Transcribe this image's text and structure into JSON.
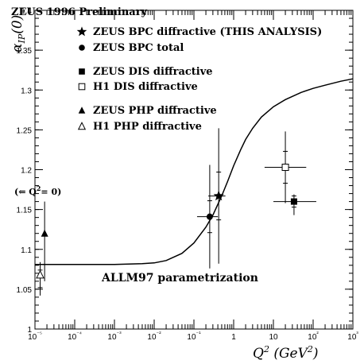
{
  "chart_data": {
    "type": "scatter",
    "title": "ZEUS 1996 Preliminary",
    "xlabel": "Q² (GeV²)",
    "ylabel": "αIP(0)",
    "xscale": "log",
    "xlim": [
      1e-05,
      1000
    ],
    "ylim": [
      1.0,
      1.4
    ],
    "x_tick_labels": [
      "10⁻⁵",
      "10⁻⁴",
      "10⁻³",
      "10⁻²",
      "10⁻¹",
      "1",
      "10",
      "10²",
      "10³"
    ],
    "x_tick_values": [
      1e-05,
      0.0001,
      0.001,
      0.01,
      0.1,
      1,
      10,
      100,
      1000
    ],
    "y_tick_labels": [
      "1",
      "1.05",
      "1.1",
      "1.15",
      "1.2",
      "1.25",
      "1.3",
      "1.35",
      "1.4"
    ],
    "y_tick_values": [
      1.0,
      1.05,
      1.1,
      1.15,
      1.2,
      1.25,
      1.3,
      1.35,
      1.4
    ],
    "grid": false,
    "legend_position": "top",
    "series": [
      {
        "name": "ZEUS BPC diffractive (THIS ANALYSIS)",
        "marker": "star-filled",
        "points": [
          {
            "x": 0.42,
            "y": 1.167,
            "xerr": [
              0.19,
              0.2
            ],
            "yerr": [
              0.085,
              0.085
            ],
            "yerr_inner": [
              0.03,
              0.03
            ]
          }
        ]
      },
      {
        "name": "ZEUS BPC total",
        "marker": "circle-filled",
        "points": [
          {
            "x": 0.25,
            "y": 1.141,
            "xerr": [
              0.13,
              0.15
            ],
            "yerr": [
              0.065,
              0.065
            ],
            "yerr_inner": [
              0.02,
              0.02
            ]
          }
        ]
      },
      {
        "name": "ZEUS DIS diffractive",
        "marker": "square-filled",
        "points": [
          {
            "x": 33,
            "y": 1.16,
            "xerr": [
              23,
              87
            ],
            "yerr": [
              0.017,
              0.009
            ],
            "yerr_inner": [
              0.007,
              0.007
            ]
          }
        ]
      },
      {
        "name": "H1 DIS diffractive",
        "marker": "square-open",
        "points": [
          {
            "x": 20,
            "y": 1.203,
            "xerr": [
              14,
              47
            ],
            "yerr": [
              0.045,
              0.045
            ],
            "yerr_inner": [
              0.02,
              0.02
            ]
          }
        ]
      },
      {
        "name": "ZEUS PHP diffractive",
        "marker": "triangle-filled",
        "points": [
          {
            "x": 1.75e-05,
            "y": 1.12,
            "xerr": [
              0,
              0
            ],
            "yerr": [
              0.06,
              0.04
            ],
            "yerr_inner": [
              0.0,
              0.0
            ]
          }
        ]
      },
      {
        "name": "H1 PHP diffractive",
        "marker": "triangle-open",
        "points": [
          {
            "x": 1.35e-05,
            "y": 1.068,
            "xerr": [
              0,
              0
            ],
            "yerr": [
              0.026,
              0.016
            ],
            "yerr_inner": [
              0.016,
              0.006
            ]
          }
        ]
      }
    ],
    "curve": {
      "name": "ALLM97 parametrization",
      "x": [
        1e-05,
        0.0001,
        0.001,
        0.005,
        0.01,
        0.02,
        0.05,
        0.1,
        0.2,
        0.3,
        0.5,
        0.7,
        1,
        1.5,
        2,
        3,
        5,
        10,
        20,
        50,
        100,
        200,
        500,
        1000
      ],
      "y": [
        1.081,
        1.081,
        1.081,
        1.082,
        1.083,
        1.086,
        1.095,
        1.108,
        1.128,
        1.143,
        1.167,
        1.185,
        1.205,
        1.225,
        1.238,
        1.252,
        1.266,
        1.279,
        1.288,
        1.297,
        1.302,
        1.306,
        1.311,
        1.314
      ]
    },
    "annotations": {
      "curve_label": "ALLM97 parametrization",
      "q2_zero_label": "(⇐ Q²= 0)"
    }
  }
}
